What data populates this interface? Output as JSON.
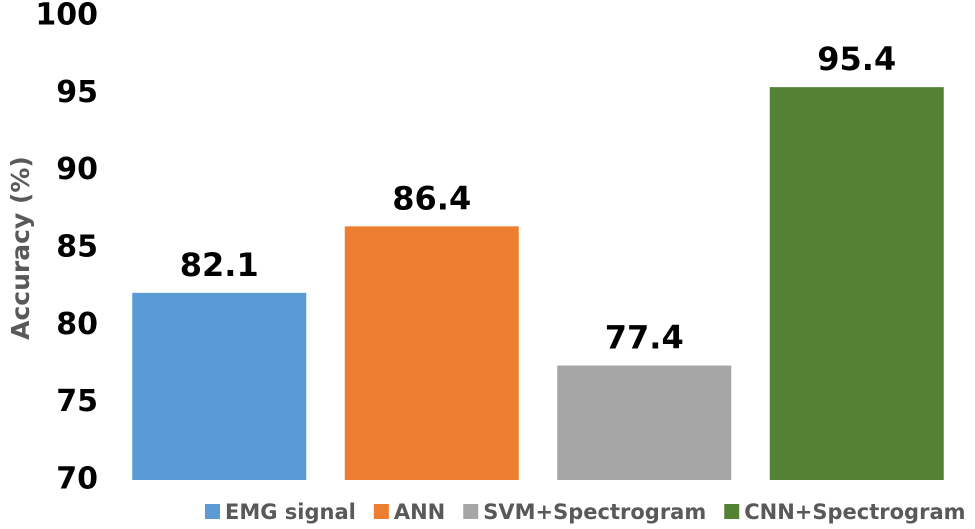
{
  "chart_data": {
    "type": "bar",
    "y_label": "Accuracy (%)",
    "series": [
      {
        "name": "EMG signal",
        "color": "#5b9bd5",
        "values": [
          82.1
        ]
      },
      {
        "name": "ANN",
        "color": "#ed7d31",
        "values": [
          86.4
        ]
      },
      {
        "name": "SVM+Spectrogram",
        "color": "#a5a5a5",
        "values": [
          77.4
        ]
      },
      {
        "name": "CNN+Spectrogram",
        "color": "#548235",
        "values": [
          95.4
        ]
      }
    ],
    "ylim": [
      70,
      100
    ],
    "yticks": [
      70,
      75,
      80,
      85,
      90,
      95,
      100
    ],
    "grid": false,
    "legend": "bottom"
  }
}
